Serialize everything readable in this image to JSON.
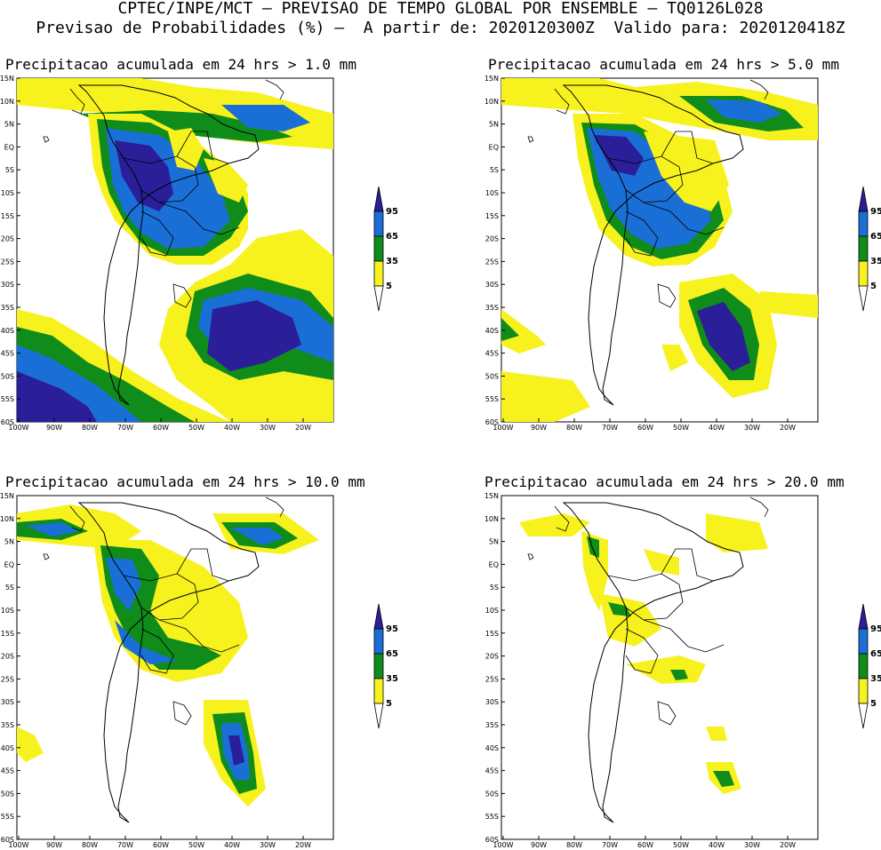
{
  "header": {
    "line1": "CPTEC/INPE/MCT – PREVISAO DE TEMPO GLOBAL POR ENSEMBLE – TQ0126L028",
    "line2": "Previsao de Probabilidades (%) –  A partir de: 2020120300Z  Valido para: 2020120418Z"
  },
  "panels": [
    {
      "title": "Precipitacao acumulada em 24 hrs > 1.0 mm"
    },
    {
      "title": "Precipitacao acumulada em 24 hrs > 5.0 mm"
    },
    {
      "title": "Precipitacao acumulada em 24 hrs > 10.0 mm"
    },
    {
      "title": "Precipitacao acumulada em 24 hrs > 20.0 mm"
    }
  ],
  "axes": {
    "lat_labels": [
      "15N",
      "10N",
      "5N",
      "EQ",
      "5S",
      "10S",
      "15S",
      "20S",
      "25S",
      "30S",
      "35S",
      "40S",
      "45S",
      "50S",
      "55S",
      "60S"
    ],
    "lon_labels": [
      "100W",
      "90W",
      "80W",
      "70W",
      "60W",
      "50W",
      "40W",
      "30W",
      "20W"
    ]
  },
  "legend": {
    "levels": [
      "95",
      "65",
      "35",
      "5"
    ],
    "colors": {
      "c95": "#2b1e99",
      "c65": "#1a6fd6",
      "c35": "#0f8c1a",
      "c5": "#f7f21e"
    }
  }
}
